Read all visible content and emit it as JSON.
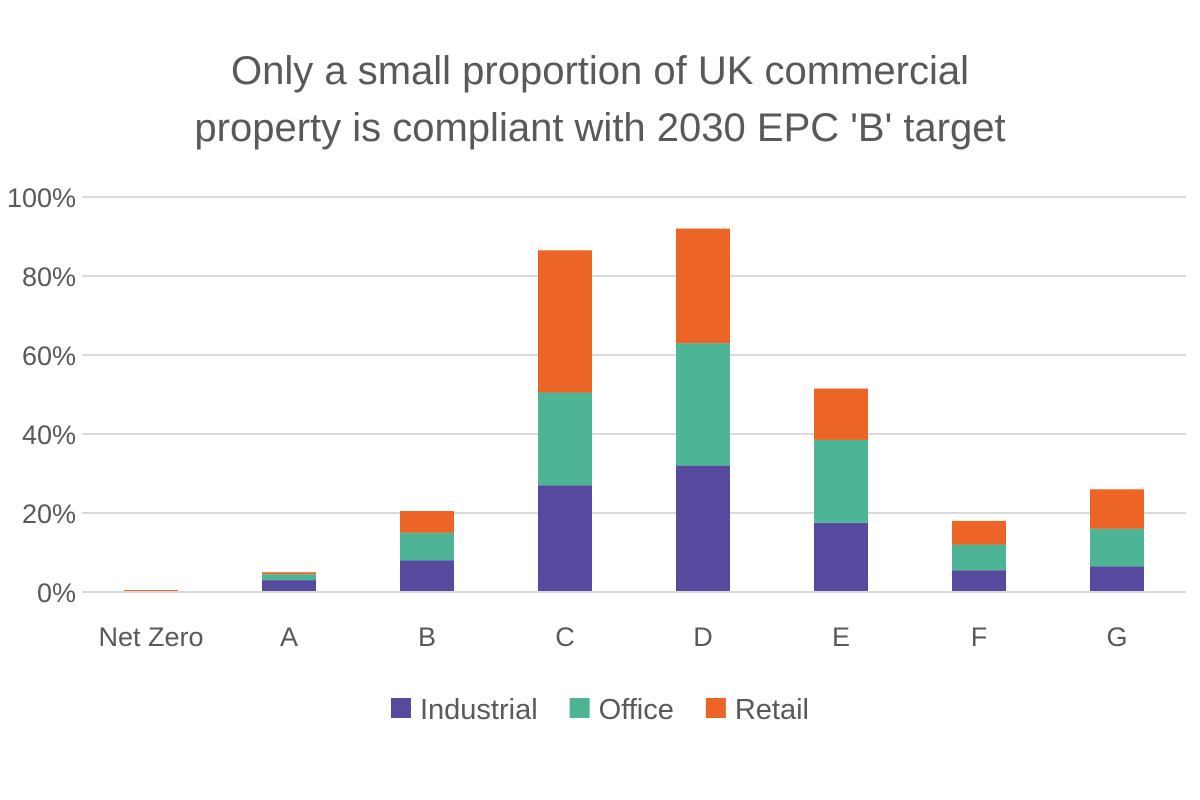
{
  "chart_data": {
    "type": "bar",
    "stacked": true,
    "title_lines": [
      "Only a small proportion of UK commercial",
      "property is compliant with 2030 EPC 'B' target"
    ],
    "xlabel": "",
    "ylabel": "",
    "categories": [
      "Net Zero",
      "A",
      "B",
      "C",
      "D",
      "E",
      "F",
      "G"
    ],
    "series": [
      {
        "name": "Industrial",
        "color": "#574a9e",
        "values": [
          0,
          3,
          8,
          27,
          32,
          17.5,
          5.5,
          6.5
        ]
      },
      {
        "name": "Office",
        "color": "#4db595",
        "values": [
          0,
          1.5,
          7,
          23.5,
          31,
          21,
          6.5,
          9.5
        ]
      },
      {
        "name": "Retail",
        "color": "#ec6527",
        "values": [
          0.5,
          0.5,
          5.5,
          36,
          29,
          13,
          6,
          10
        ]
      }
    ],
    "ylim": [
      0,
      100
    ],
    "yticks": [
      {
        "value": 0,
        "label": "0%"
      },
      {
        "value": 20,
        "label": "20%"
      },
      {
        "value": 40,
        "label": "40%"
      },
      {
        "value": 60,
        "label": "60%"
      },
      {
        "value": 80,
        "label": "80%"
      },
      {
        "value": 100,
        "label": "100%"
      }
    ],
    "grid": true,
    "legend_position": "bottom"
  }
}
